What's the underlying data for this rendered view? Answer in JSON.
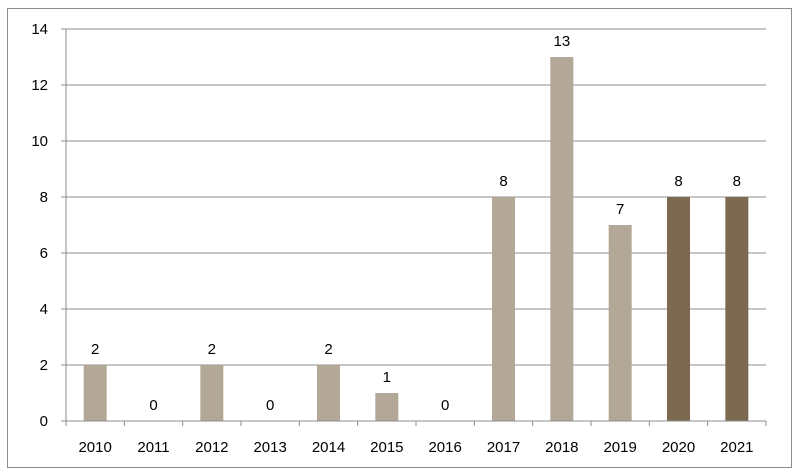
{
  "chart_data": {
    "type": "bar",
    "categories": [
      "2010",
      "2011",
      "2012",
      "2013",
      "2014",
      "2015",
      "2016",
      "2017",
      "2018",
      "2019",
      "2020",
      "2021"
    ],
    "values": [
      2,
      0,
      2,
      0,
      2,
      1,
      0,
      8,
      13,
      7,
      8,
      8
    ],
    "bar_colors": [
      "#b3a798",
      "#b3a798",
      "#b3a798",
      "#b3a798",
      "#b3a798",
      "#b3a798",
      "#b3a798",
      "#b3a798",
      "#b3a798",
      "#b3a798",
      "#7d6850",
      "#7d6850"
    ],
    "data_labels": [
      "2",
      "0",
      "2",
      "0",
      "2",
      "1",
      "0",
      "8",
      "13",
      "7",
      "8",
      "8"
    ],
    "yticks": [
      "0",
      "2",
      "4",
      "6",
      "8",
      "10",
      "12",
      "14"
    ],
    "ylim": [
      0,
      14
    ],
    "grid": true,
    "legend": "none",
    "title": "",
    "xlabel": "",
    "ylabel": ""
  }
}
